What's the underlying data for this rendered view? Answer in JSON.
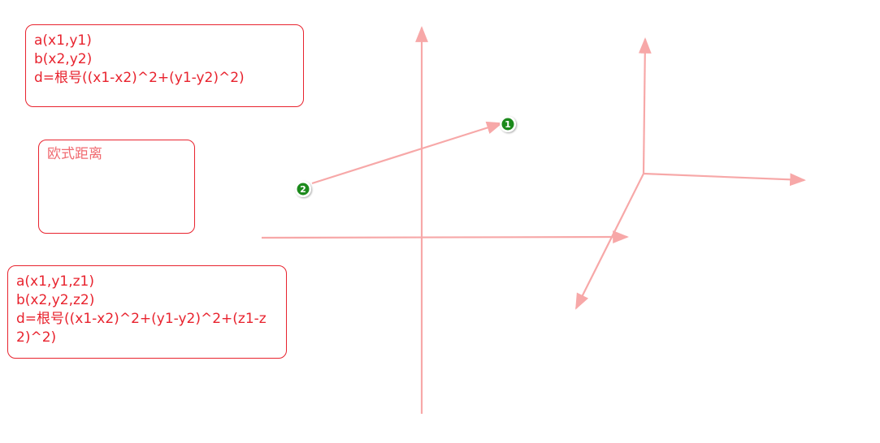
{
  "notes": {
    "two_d": {
      "line1": "a(x1,y1)",
      "line2": "b(x2,y2)",
      "line3": "d=根号((x1-x2)^2+(y1-y2)^2)"
    },
    "label": {
      "text": "欧式距离"
    },
    "three_d": {
      "line1": "a(x1,y1,z1)",
      "line2": "b(x2,y2,z2)",
      "line3": "d=根号((x1-x2)^2+(y1-y2)^2+(z1-z2)^2)"
    }
  },
  "markers": {
    "point1": "1",
    "point2": "2"
  },
  "colors": {
    "text": "#e8232e",
    "axis": "#f7a8a8",
    "marker_fill": "#1f8a1f",
    "marker_ring": "#ffffff"
  }
}
